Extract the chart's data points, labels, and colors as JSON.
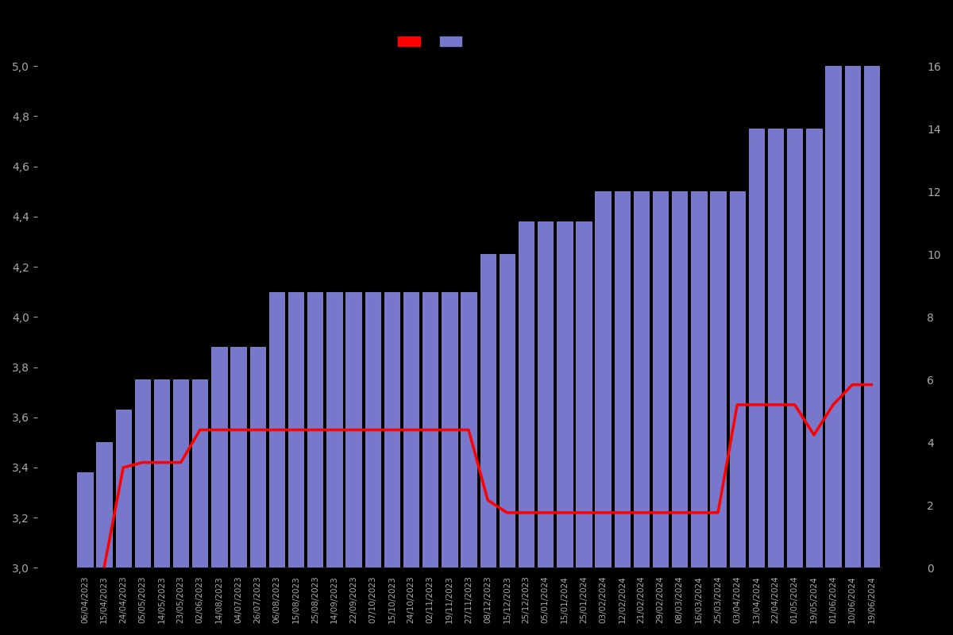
{
  "dates": [
    "06/04/2023",
    "15/04/2023",
    "24/04/2023",
    "05/05/2023",
    "14/05/2023",
    "23/05/2023",
    "02/06/2023",
    "14/08/2023",
    "04/07/2023",
    "26/07/2023",
    "06/08/2023",
    "15/08/2023",
    "25/08/2023",
    "14/09/2023",
    "22/09/2023",
    "07/10/2023",
    "15/10/2023",
    "24/10/2023",
    "02/11/2023",
    "19/11/2023",
    "27/11/2023",
    "08/12/2023",
    "15/12/2023",
    "25/12/2023",
    "05/01/2024",
    "15/01/2024",
    "25/01/2024",
    "03/02/2024",
    "12/02/2024",
    "21/02/2024",
    "29/02/2024",
    "08/03/2024",
    "16/03/2024",
    "25/03/2024",
    "03/04/2024",
    "13/04/2024",
    "22/04/2024",
    "01/05/2024",
    "19/05/2024",
    "01/06/2024",
    "10/06/2024",
    "19/06/2024"
  ],
  "bar_values": [
    3.38,
    3.5,
    3.63,
    3.75,
    3.75,
    3.75,
    3.75,
    3.88,
    3.88,
    3.88,
    4.1,
    4.1,
    4.1,
    4.1,
    4.1,
    4.1,
    4.1,
    4.1,
    4.1,
    4.1,
    4.1,
    4.25,
    4.25,
    4.38,
    4.38,
    4.38,
    4.38,
    4.5,
    4.5,
    4.5,
    4.5,
    4.5,
    4.5,
    4.5,
    4.5,
    4.75,
    4.75,
    4.75,
    4.75,
    5.0,
    5.0,
    5.0
  ],
  "line_values": [
    2.95,
    3.0,
    3.4,
    3.42,
    3.42,
    3.42,
    3.55,
    3.55,
    3.55,
    3.55,
    3.55,
    3.55,
    3.55,
    3.55,
    3.55,
    3.55,
    3.55,
    3.55,
    3.55,
    3.55,
    3.55,
    3.27,
    3.22,
    3.22,
    3.22,
    3.22,
    3.22,
    3.22,
    3.22,
    3.22,
    3.22,
    3.22,
    3.22,
    3.22,
    3.65,
    3.65,
    3.65,
    3.65,
    3.53,
    3.65,
    3.73,
    3.73
  ],
  "bar_color": "#7777cc",
  "bar_edgecolor": "#9999ee",
  "line_color": "#ff0000",
  "background_color": "#000000",
  "text_color": "#aaaaaa",
  "ylim_left": [
    3.0,
    5.0
  ],
  "ylim_right": [
    0,
    16
  ],
  "yticks_left": [
    3.0,
    3.2,
    3.4,
    3.6,
    3.8,
    4.0,
    4.2,
    4.4,
    4.6,
    4.8,
    5.0
  ],
  "yticks_right": [
    0,
    2,
    4,
    6,
    8,
    10,
    12,
    14,
    16
  ]
}
